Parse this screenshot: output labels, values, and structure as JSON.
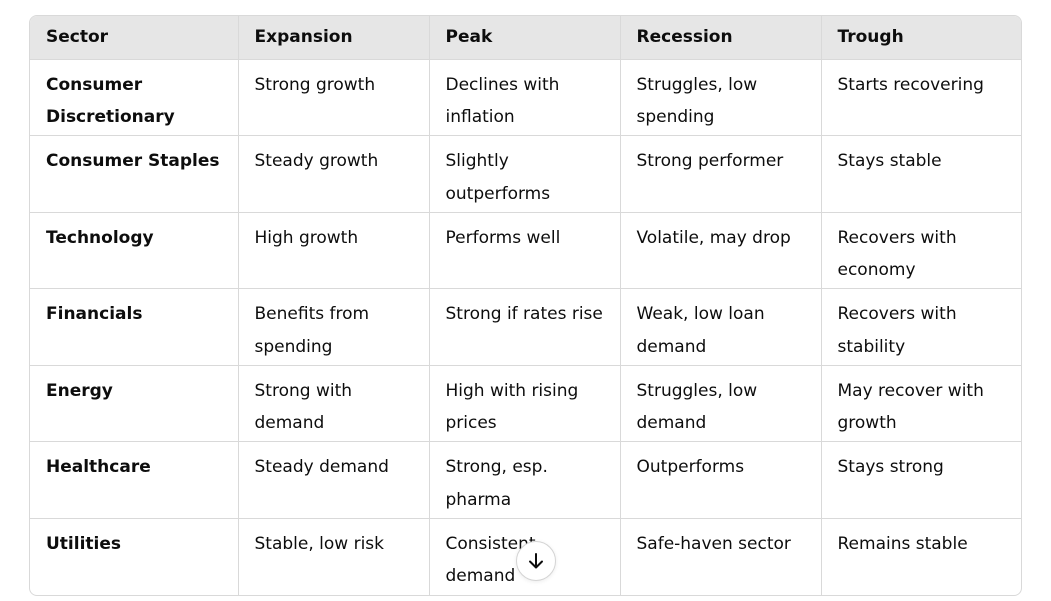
{
  "table": {
    "headers": [
      "Sector",
      "Expansion",
      "Peak",
      "Recession",
      "Trough"
    ],
    "rows": [
      [
        "Consumer Discretionary",
        "Strong growth",
        "Declines with inflation",
        "Struggles, low spending",
        "Starts recovering"
      ],
      [
        "Consumer Staples",
        "Steady growth",
        "Slightly outperforms",
        "Strong performer",
        "Stays stable"
      ],
      [
        "Technology",
        "High growth",
        "Performs well",
        "Volatile, may drop",
        "Recovers with economy"
      ],
      [
        "Financials",
        "Benefits from spending",
        "Strong if rates rise",
        "Weak, low loan demand",
        "Recovers with stability"
      ],
      [
        "Energy",
        "Strong with demand",
        "High with rising prices",
        "Struggles, low demand",
        "May recover with growth"
      ],
      [
        "Healthcare",
        "Steady demand",
        "Strong, esp. pharma",
        "Outperforms",
        "Stays strong"
      ],
      [
        "Utilities",
        "Stable, low risk",
        "Consistent demand",
        "Safe-haven sector",
        "Remains stable"
      ]
    ]
  },
  "scroll_button": {
    "icon": "arrow-down-icon"
  }
}
